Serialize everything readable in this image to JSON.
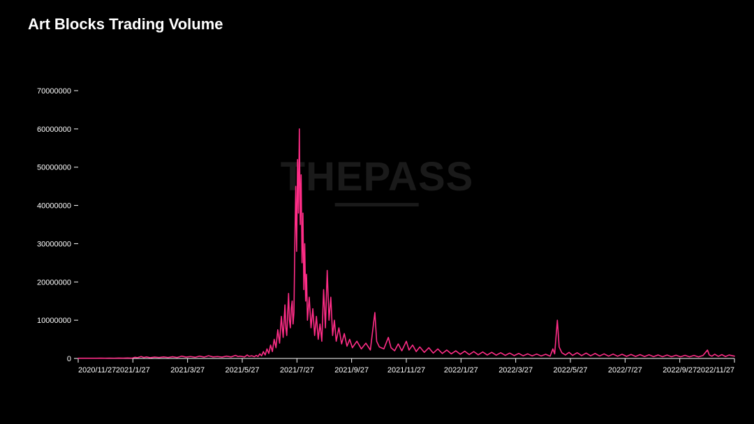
{
  "title": "Art Blocks Trading Volume",
  "title_fontsize": 22,
  "watermark_text": "THEPASS",
  "watermark_color": "#1a1a1a",
  "chart": {
    "type": "line",
    "background_color": "#000000",
    "line_color": "#ff2d87",
    "line_width": 1.6,
    "text_color": "#ffffff",
    "tick_fontsize": 11,
    "ylim": [
      0,
      70000000
    ],
    "ytick_step": 10000000,
    "y_ticks": [
      0,
      10000000,
      20000000,
      30000000,
      40000000,
      50000000,
      60000000,
      70000000
    ],
    "x_labels": [
      "2020/11/27",
      "2021/1/27",
      "2021/3/27",
      "2021/5/27",
      "2021/7/27",
      "2021/9/27",
      "2021/11/27",
      "2022/1/27",
      "2022/3/27",
      "2022/5/27",
      "2022/7/27",
      "2022/9/27",
      "2022/11/27"
    ],
    "x_domain_days": 730,
    "series": [
      [
        0,
        50000
      ],
      [
        5,
        60000
      ],
      [
        10,
        50000
      ],
      [
        15,
        70000
      ],
      [
        20,
        60000
      ],
      [
        25,
        80000
      ],
      [
        30,
        60000
      ],
      [
        35,
        90000
      ],
      [
        40,
        70000
      ],
      [
        45,
        100000
      ],
      [
        50,
        80000
      ],
      [
        55,
        120000
      ],
      [
        60,
        90000
      ],
      [
        63,
        300000
      ],
      [
        66,
        200000
      ],
      [
        70,
        500000
      ],
      [
        73,
        250000
      ],
      [
        76,
        400000
      ],
      [
        80,
        200000
      ],
      [
        85,
        350000
      ],
      [
        90,
        250000
      ],
      [
        95,
        400000
      ],
      [
        100,
        250000
      ],
      [
        105,
        450000
      ],
      [
        110,
        250000
      ],
      [
        115,
        600000
      ],
      [
        120,
        350000
      ],
      [
        125,
        500000
      ],
      [
        130,
        300000
      ],
      [
        135,
        600000
      ],
      [
        140,
        350000
      ],
      [
        145,
        700000
      ],
      [
        150,
        400000
      ],
      [
        155,
        500000
      ],
      [
        160,
        350000
      ],
      [
        165,
        600000
      ],
      [
        170,
        400000
      ],
      [
        175,
        800000
      ],
      [
        178,
        500000
      ],
      [
        180,
        600000
      ],
      [
        185,
        400000
      ],
      [
        188,
        900000
      ],
      [
        190,
        550000
      ],
      [
        193,
        700000
      ],
      [
        196,
        450000
      ],
      [
        198,
        800000
      ],
      [
        200,
        500000
      ],
      [
        202,
        1200000
      ],
      [
        204,
        700000
      ],
      [
        206,
        1800000
      ],
      [
        208,
        900000
      ],
      [
        210,
        2500000
      ],
      [
        212,
        1300000
      ],
      [
        214,
        3500000
      ],
      [
        216,
        1800000
      ],
      [
        218,
        5000000
      ],
      [
        220,
        2800000
      ],
      [
        222,
        7500000
      ],
      [
        224,
        4000000
      ],
      [
        226,
        11000000
      ],
      [
        228,
        5500000
      ],
      [
        230,
        14000000
      ],
      [
        231,
        8000000
      ],
      [
        232,
        6000000
      ],
      [
        234,
        17000000
      ],
      [
        235,
        10000000
      ],
      [
        236,
        8000000
      ],
      [
        237,
        13000000
      ],
      [
        238,
        15000000
      ],
      [
        239,
        9000000
      ],
      [
        240,
        12000000
      ],
      [
        241,
        30000000
      ],
      [
        242,
        45000000
      ],
      [
        243,
        28000000
      ],
      [
        244,
        52000000
      ],
      [
        245,
        38000000
      ],
      [
        246,
        60000000
      ],
      [
        247,
        35000000
      ],
      [
        248,
        48000000
      ],
      [
        249,
        25000000
      ],
      [
        250,
        38000000
      ],
      [
        251,
        18000000
      ],
      [
        252,
        30000000
      ],
      [
        253,
        15000000
      ],
      [
        254,
        22000000
      ],
      [
        255,
        10000000
      ],
      [
        257,
        16000000
      ],
      [
        259,
        8000000
      ],
      [
        261,
        13000000
      ],
      [
        263,
        6000000
      ],
      [
        265,
        11000000
      ],
      [
        267,
        5000000
      ],
      [
        269,
        9000000
      ],
      [
        271,
        4500000
      ],
      [
        273,
        18000000
      ],
      [
        275,
        8000000
      ],
      [
        277,
        23000000
      ],
      [
        279,
        10000000
      ],
      [
        281,
        16000000
      ],
      [
        283,
        6000000
      ],
      [
        285,
        10000000
      ],
      [
        287,
        4500000
      ],
      [
        290,
        8000000
      ],
      [
        293,
        3800000
      ],
      [
        296,
        6500000
      ],
      [
        299,
        3200000
      ],
      [
        302,
        5000000
      ],
      [
        305,
        2800000
      ],
      [
        310,
        4500000
      ],
      [
        315,
        2500000
      ],
      [
        320,
        4000000
      ],
      [
        325,
        2200000
      ],
      [
        330,
        12000000
      ],
      [
        332,
        4500000
      ],
      [
        335,
        3000000
      ],
      [
        340,
        2500000
      ],
      [
        345,
        5500000
      ],
      [
        348,
        2800000
      ],
      [
        352,
        2000000
      ],
      [
        356,
        3800000
      ],
      [
        360,
        2000000
      ],
      [
        365,
        4500000
      ],
      [
        368,
        2200000
      ],
      [
        372,
        3500000
      ],
      [
        376,
        1800000
      ],
      [
        380,
        3000000
      ],
      [
        385,
        1600000
      ],
      [
        390,
        2800000
      ],
      [
        395,
        1400000
      ],
      [
        400,
        2500000
      ],
      [
        405,
        1300000
      ],
      [
        410,
        2200000
      ],
      [
        415,
        1200000
      ],
      [
        420,
        2000000
      ],
      [
        425,
        1100000
      ],
      [
        430,
        1900000
      ],
      [
        435,
        1000000
      ],
      [
        440,
        1800000
      ],
      [
        445,
        950000
      ],
      [
        450,
        1700000
      ],
      [
        455,
        900000
      ],
      [
        460,
        1600000
      ],
      [
        465,
        850000
      ],
      [
        470,
        1500000
      ],
      [
        475,
        800000
      ],
      [
        480,
        1400000
      ],
      [
        485,
        750000
      ],
      [
        490,
        1300000
      ],
      [
        495,
        700000
      ],
      [
        500,
        1200000
      ],
      [
        505,
        680000
      ],
      [
        510,
        1150000
      ],
      [
        515,
        650000
      ],
      [
        520,
        1100000
      ],
      [
        525,
        600000
      ],
      [
        528,
        2500000
      ],
      [
        530,
        1200000
      ],
      [
        533,
        10000000
      ],
      [
        535,
        3000000
      ],
      [
        538,
        1500000
      ],
      [
        542,
        900000
      ],
      [
        546,
        1600000
      ],
      [
        550,
        800000
      ],
      [
        555,
        1500000
      ],
      [
        560,
        750000
      ],
      [
        565,
        1400000
      ],
      [
        570,
        700000
      ],
      [
        575,
        1300000
      ],
      [
        580,
        650000
      ],
      [
        585,
        1200000
      ],
      [
        590,
        600000
      ],
      [
        595,
        1150000
      ],
      [
        600,
        580000
      ],
      [
        605,
        1100000
      ],
      [
        610,
        550000
      ],
      [
        615,
        1050000
      ],
      [
        620,
        520000
      ],
      [
        625,
        1000000
      ],
      [
        630,
        500000
      ],
      [
        635,
        950000
      ],
      [
        640,
        480000
      ],
      [
        645,
        900000
      ],
      [
        650,
        460000
      ],
      [
        655,
        880000
      ],
      [
        660,
        450000
      ],
      [
        665,
        850000
      ],
      [
        670,
        440000
      ],
      [
        675,
        820000
      ],
      [
        680,
        430000
      ],
      [
        685,
        800000
      ],
      [
        690,
        420000
      ],
      [
        695,
        780000
      ],
      [
        700,
        2200000
      ],
      [
        702,
        900000
      ],
      [
        705,
        600000
      ],
      [
        708,
        1100000
      ],
      [
        712,
        550000
      ],
      [
        716,
        1000000
      ],
      [
        720,
        500000
      ],
      [
        724,
        900000
      ],
      [
        728,
        700000
      ],
      [
        730,
        600000
      ]
    ]
  }
}
